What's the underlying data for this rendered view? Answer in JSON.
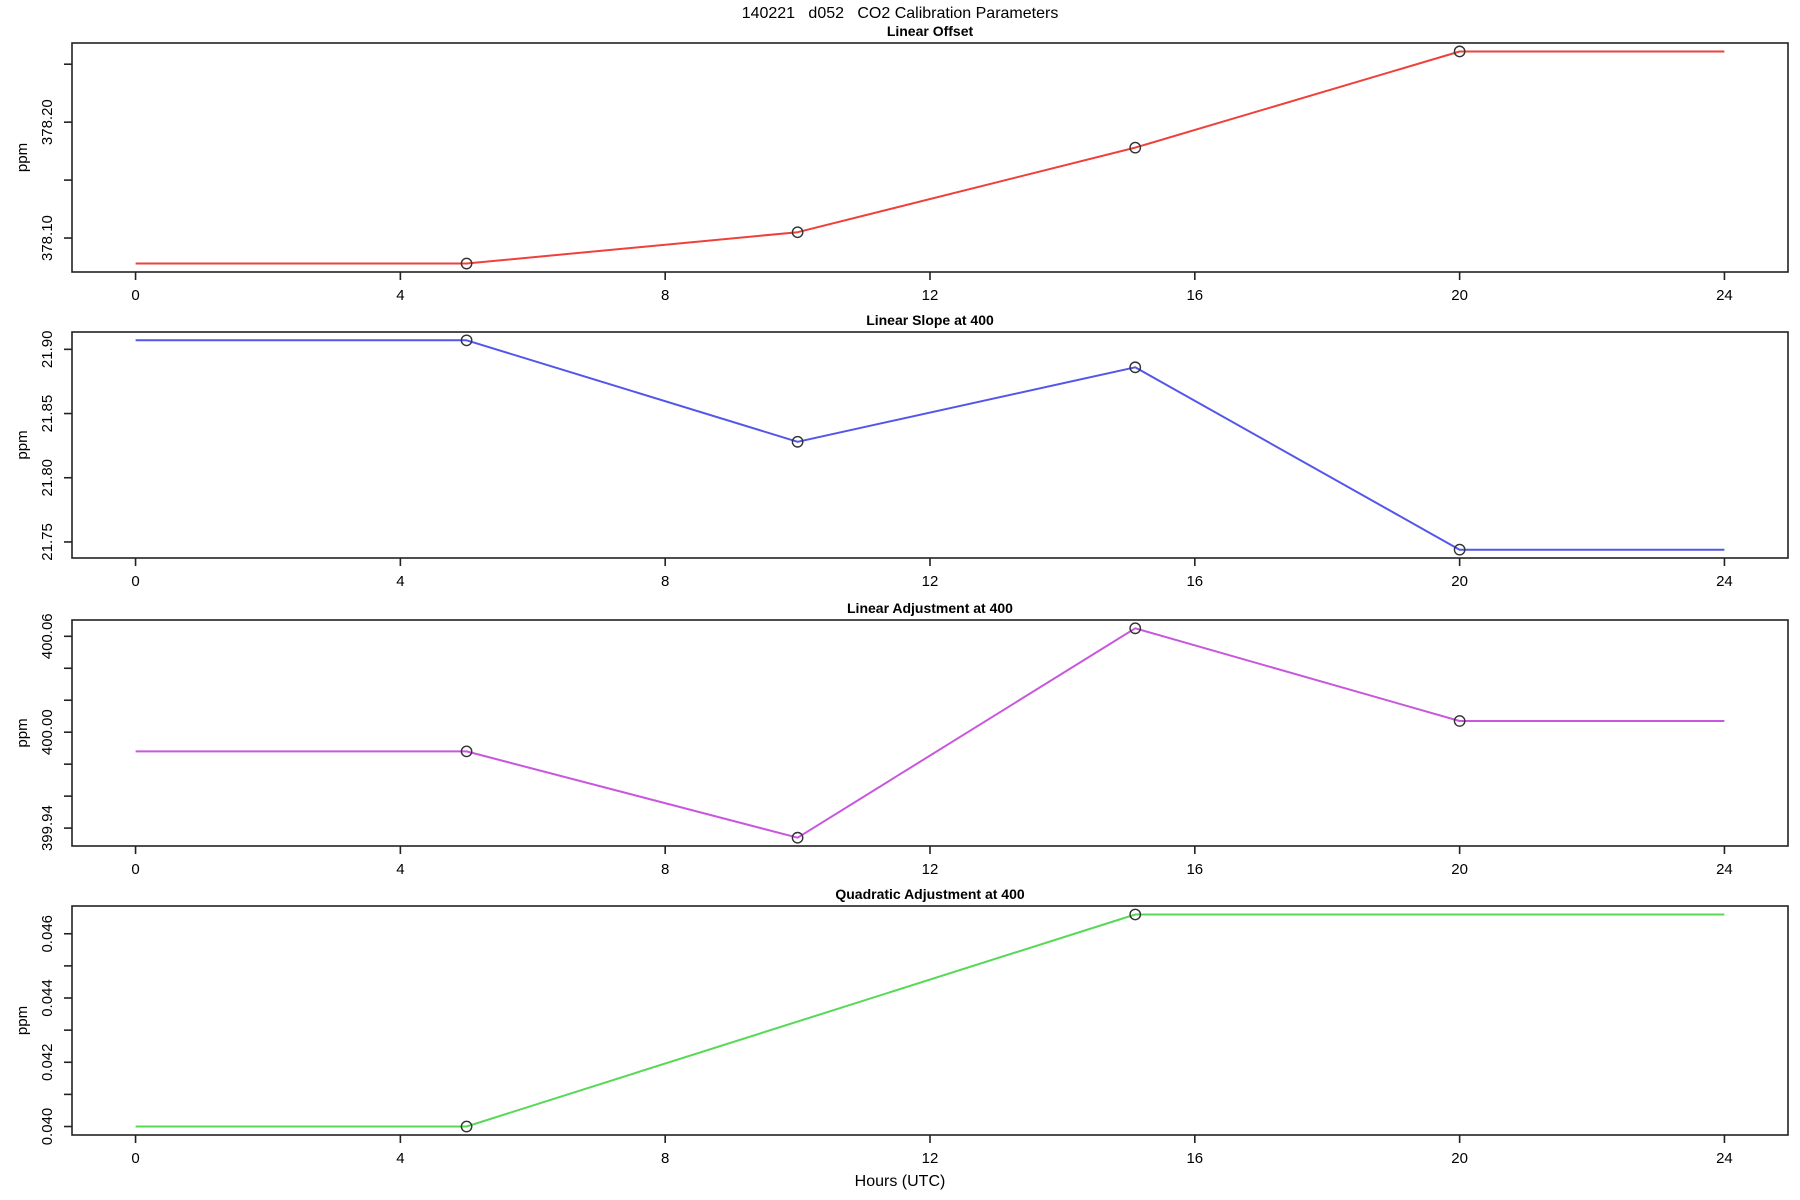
{
  "figure": {
    "main_title": "140221   d052   CO2 Calibration Parameters",
    "x_axis_label": "Hours (UTC)"
  },
  "chart_data": {
    "type": "line",
    "title": "140221   d052   CO2 Calibration Parameters",
    "xlabel": "Hours (UTC)",
    "grid": false,
    "legend": "none",
    "xlim": [
      -0.96,
      24.96
    ],
    "x_ticks": [
      0,
      4,
      8,
      12,
      16,
      20,
      24
    ],
    "panels": [
      {
        "title": "Linear Offset",
        "ylabel": "ppm",
        "color": "#EE413B",
        "x": [
          0,
          5,
          10,
          15.1,
          20,
          24
        ],
        "y": [
          378.078,
          378.078,
          378.105,
          378.178,
          378.261,
          378.261
        ],
        "marker_x": [
          5,
          10,
          15.1,
          20
        ],
        "ylim": [
          378.0707,
          378.2683
        ],
        "yticks": [
          {
            "value": 378.1,
            "label": "378.10"
          },
          {
            "value": 378.15,
            "label": ""
          },
          {
            "value": 378.2,
            "label": "378.20"
          },
          {
            "value": 378.25,
            "label": ""
          }
        ]
      },
      {
        "title": "Linear Slope at 400",
        "ylabel": "ppm",
        "color": "#5456EA",
        "x": [
          0,
          5,
          10,
          15.1,
          20,
          24
        ],
        "y": [
          21.907,
          21.907,
          21.828,
          21.886,
          21.744,
          21.744
        ],
        "marker_x": [
          5,
          10,
          15.1,
          20
        ],
        "ylim": [
          21.7375,
          21.9135
        ],
        "yticks": [
          {
            "value": 21.75,
            "label": "21.75"
          },
          {
            "value": 21.8,
            "label": "21.80"
          },
          {
            "value": 21.85,
            "label": "21.85"
          },
          {
            "value": 21.9,
            "label": "21.90"
          }
        ]
      },
      {
        "title": "Linear Adjustment at 400",
        "ylabel": "ppm",
        "color": "#C957DE",
        "x": [
          0,
          5,
          10,
          15.1,
          20,
          24
        ],
        "y": [
          399.988,
          399.988,
          399.934,
          400.065,
          400.007,
          400.007
        ],
        "marker_x": [
          5,
          10,
          15.1,
          20
        ],
        "ylim": [
          399.9288,
          400.0702
        ],
        "yticks": [
          {
            "value": 399.94,
            "label": "399.94"
          },
          {
            "value": 399.96,
            "label": ""
          },
          {
            "value": 399.98,
            "label": ""
          },
          {
            "value": 400.0,
            "label": "400.00"
          },
          {
            "value": 400.02,
            "label": ""
          },
          {
            "value": 400.04,
            "label": ""
          },
          {
            "value": 400.06,
            "label": "400.06"
          }
        ]
      },
      {
        "title": "Quadratic Adjustment at 400",
        "ylabel": "ppm",
        "color": "#57D957",
        "x": [
          0,
          5,
          15.1,
          24
        ],
        "y": [
          0.04,
          0.04,
          0.0466,
          0.0466
        ],
        "marker_x": [
          5,
          15.1
        ],
        "ylim": [
          0.039736,
          0.046864
        ],
        "yticks": [
          {
            "value": 0.04,
            "label": "0.040"
          },
          {
            "value": 0.041,
            "label": ""
          },
          {
            "value": 0.042,
            "label": "0.042"
          },
          {
            "value": 0.043,
            "label": ""
          },
          {
            "value": 0.044,
            "label": "0.044"
          },
          {
            "value": 0.045,
            "label": ""
          },
          {
            "value": 0.046,
            "label": "0.046"
          }
        ]
      }
    ]
  }
}
